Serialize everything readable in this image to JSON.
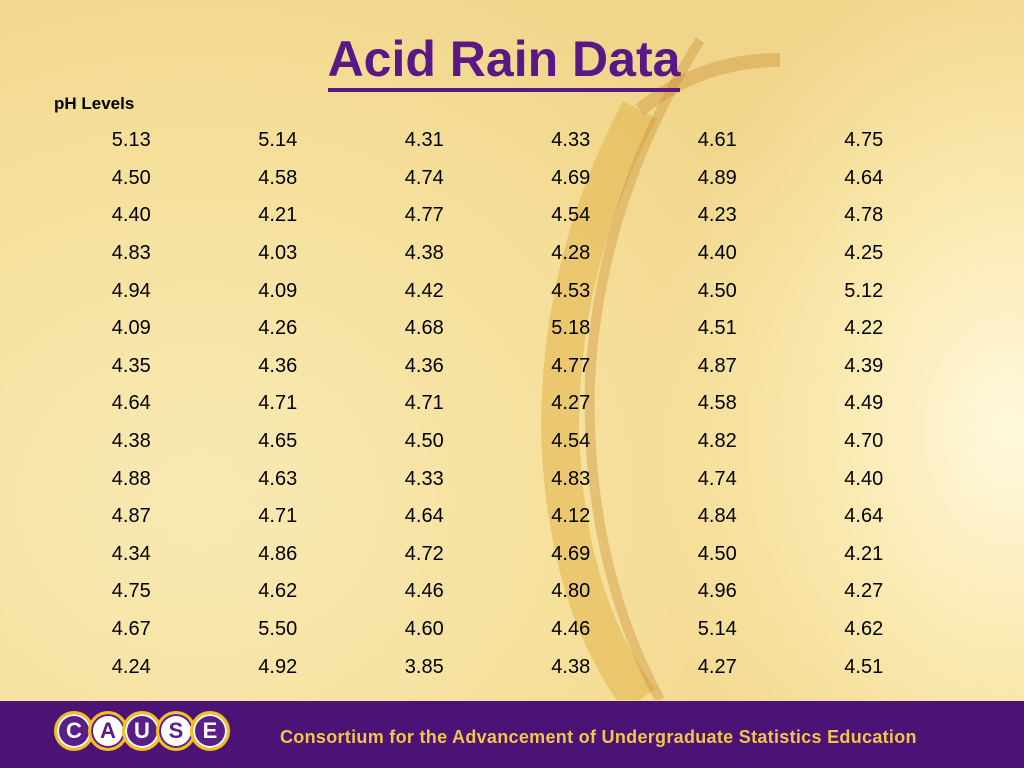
{
  "title": "Acid Rain Data",
  "subtitle": "pH Levels",
  "table": {
    "rows": [
      [
        "5.13",
        "5.14",
        "4.31",
        "4.33",
        "4.61",
        "4.75"
      ],
      [
        "4.50",
        "4.58",
        "4.74",
        "4.69",
        "4.89",
        "4.64"
      ],
      [
        "4.40",
        "4.21",
        "4.77",
        "4.54",
        "4.23",
        "4.78"
      ],
      [
        "4.83",
        "4.03",
        "4.38",
        "4.28",
        "4.40",
        "4.25"
      ],
      [
        "4.94",
        "4.09",
        "4.42",
        "4.53",
        "4.50",
        "5.12"
      ],
      [
        "4.09",
        "4.26",
        "4.68",
        "5.18",
        "4.51",
        "4.22"
      ],
      [
        "4.35",
        "4.36",
        "4.36",
        "4.77",
        "4.87",
        "4.39"
      ],
      [
        "4.64",
        "4.71",
        "4.71",
        "4.27",
        "4.58",
        "4.49"
      ],
      [
        "4.38",
        "4.65",
        "4.50",
        "4.54",
        "4.82",
        "4.70"
      ],
      [
        "4.88",
        "4.63",
        "4.33",
        "4.83",
        "4.74",
        "4.40"
      ],
      [
        "4.87",
        "4.71",
        "4.64",
        "4.12",
        "4.84",
        "4.64"
      ],
      [
        "4.34",
        "4.86",
        "4.72",
        "4.69",
        "4.50",
        "4.21"
      ],
      [
        "4.75",
        "4.62",
        "4.46",
        "4.80",
        "4.96",
        "4.27"
      ],
      [
        "4.67",
        "5.50",
        "4.60",
        "4.46",
        "5.14",
        "4.62"
      ],
      [
        "4.24",
        "4.92",
        "3.85",
        "4.38",
        "4.27",
        "4.51"
      ]
    ]
  },
  "footer": {
    "logo_letters": [
      "C",
      "A",
      "U",
      "S",
      "E"
    ],
    "text": "Consortium for the Advancement of Undergraduate Statistics Education"
  },
  "colors": {
    "title": "#5a1786",
    "footer_bg": "#4c1275",
    "footer_text": "#f0c64a",
    "logo_ring": "#f3c020"
  }
}
